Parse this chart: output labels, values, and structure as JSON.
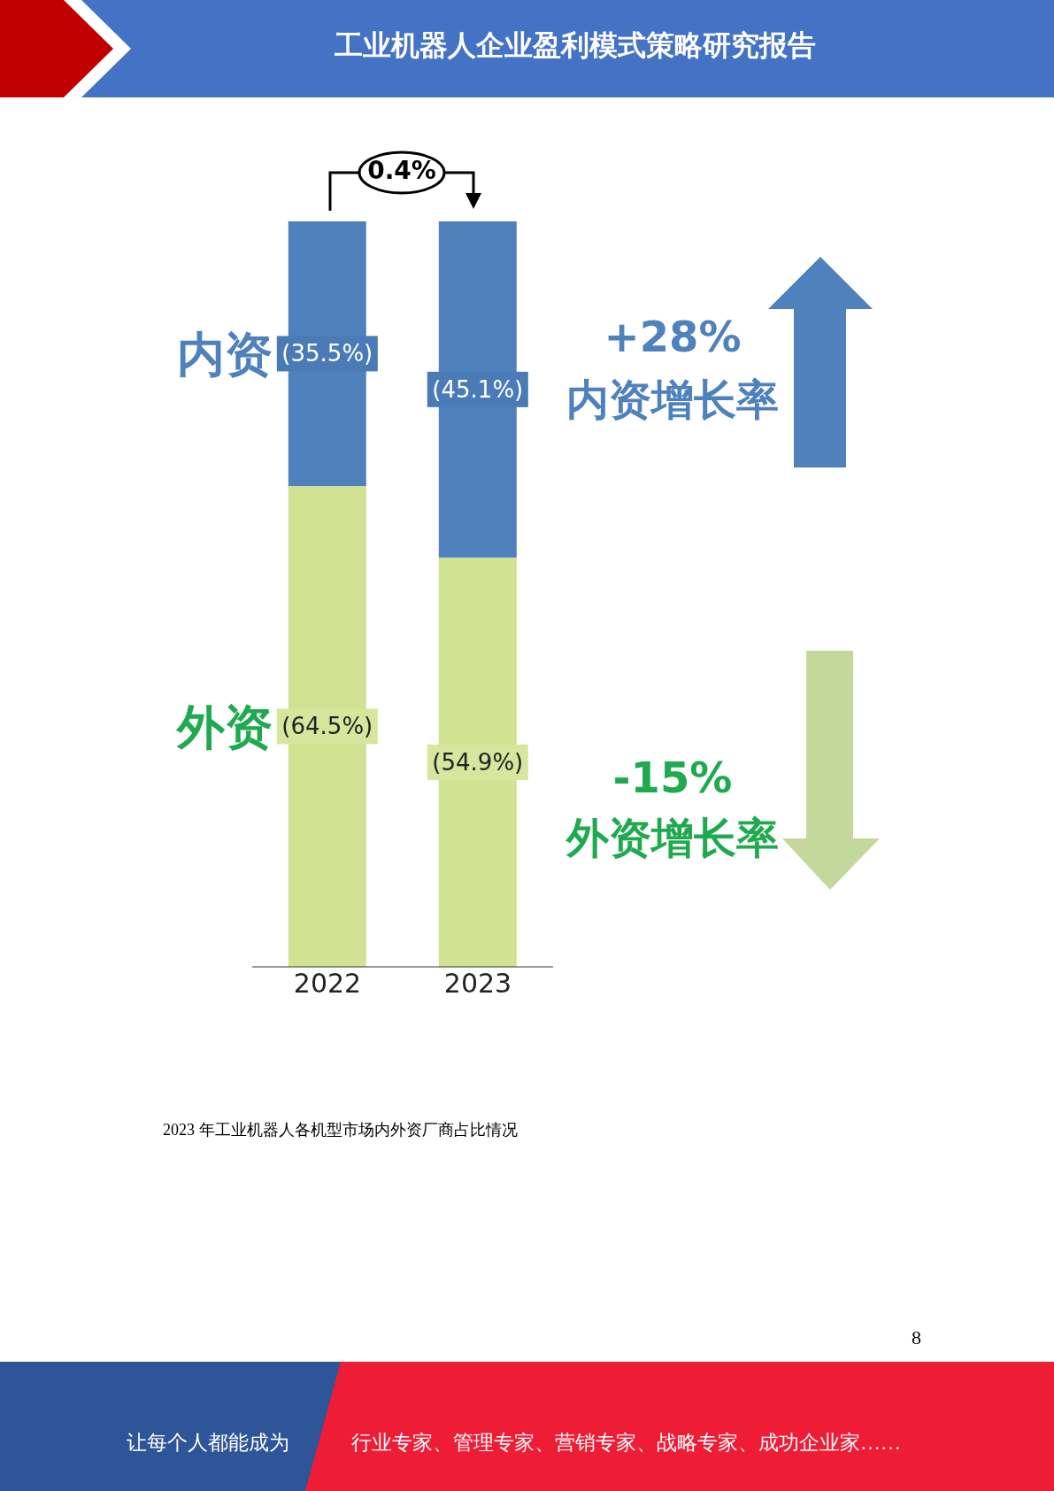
{
  "chart_data": {
    "type": "bar",
    "title": "工业机器人企业盈利模式策略研究报告",
    "categories": [
      "2022",
      "2023"
    ],
    "stacked": true,
    "legend": "left",
    "grid": false,
    "tick_labels": "x",
    "series": [
      {
        "name": "外资",
        "color": "#d1e292",
        "values": [
          64.5,
          54.9
        ],
        "value_labels": [
          "(64.5%)",
          "(54.9%)"
        ]
      },
      {
        "name": "内资",
        "color": "#4f81bd",
        "values": [
          35.5,
          45.1
        ],
        "value_labels": [
          "(35.5%)",
          "(45.1%)"
        ]
      }
    ],
    "annotations": [
      "0.4%",
      "+28%",
      "内资增长率",
      "-15%",
      "外资增长率",
      "2023 年工业机器人各机型市场内外资厂商占比情况",
      "让每个人都能成为",
      "行业专家、管理专家、营销专家、战略专家、成功企业家……",
      "8"
    ]
  }
}
